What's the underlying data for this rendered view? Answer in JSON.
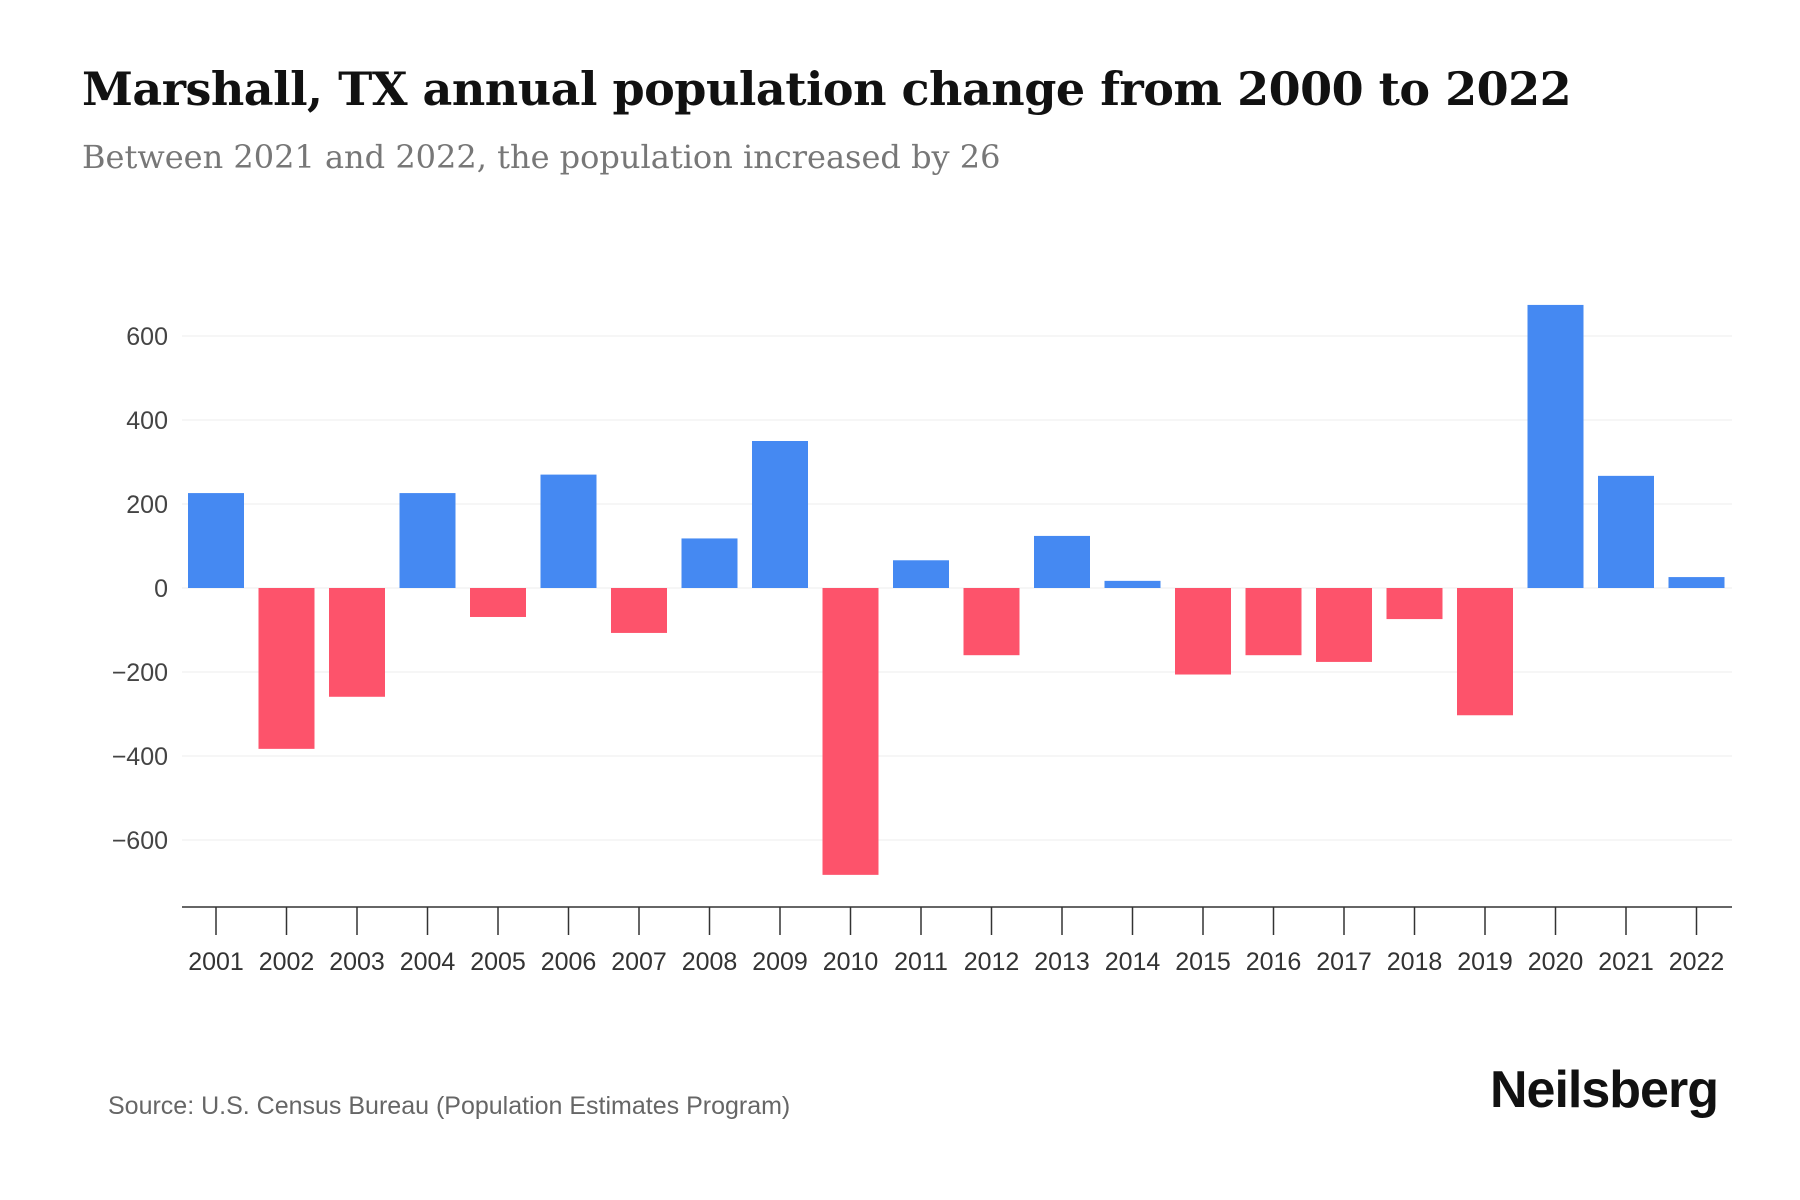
{
  "title": "Marshall, TX annual population change from 2000 to 2022",
  "subtitle": "Between 2021 and 2022, the population increased by 26",
  "source": "Source: U.S. Census Bureau (Population Estimates Program)",
  "logo": "Neilsberg",
  "colors": {
    "positive": "#4589f2",
    "negative": "#fd536b"
  },
  "chart_data": {
    "type": "bar",
    "title": "Marshall, TX annual population change from 2000 to 2022",
    "xlabel": "",
    "ylabel": "",
    "categories": [
      "2001",
      "2002",
      "2003",
      "2004",
      "2005",
      "2006",
      "2007",
      "2008",
      "2009",
      "2010",
      "2011",
      "2012",
      "2013",
      "2014",
      "2015",
      "2016",
      "2017",
      "2018",
      "2019",
      "2020",
      "2021",
      "2022"
    ],
    "values": [
      226,
      -383,
      -259,
      226,
      -69,
      270,
      -107,
      118,
      350,
      -683,
      66,
      -160,
      124,
      17,
      -206,
      -160,
      -176,
      -74,
      -303,
      674,
      267,
      26
    ],
    "ylim": [
      -760,
      760
    ],
    "yticks": [
      600,
      400,
      200,
      0,
      -200,
      -400,
      -600
    ],
    "ytick_labels": [
      "600",
      "400",
      "200",
      "0",
      "−200",
      "−400",
      "−600"
    ],
    "grid": true
  }
}
